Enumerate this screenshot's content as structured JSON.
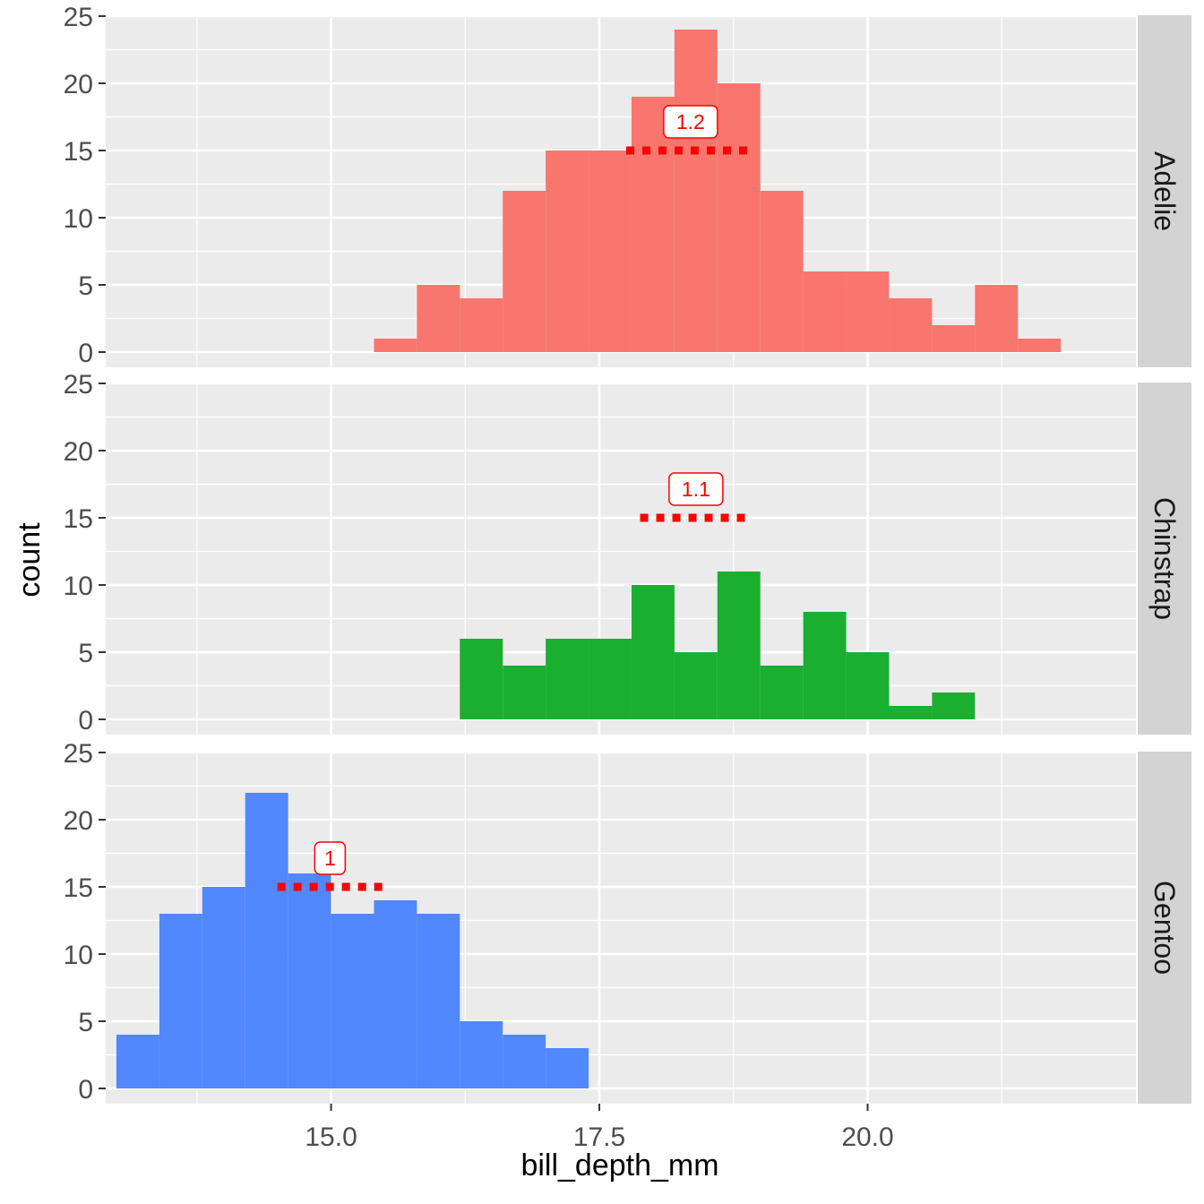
{
  "chart_data": {
    "type": "bar",
    "xlabel": "bill_depth_mm",
    "ylabel": "count",
    "x_ticks": [
      "15.0",
      "17.5",
      "20.0"
    ],
    "x_tick_values": [
      15.0,
      17.5,
      20.0
    ],
    "xlim": [
      12.9,
      22.5
    ],
    "ylim": [
      0,
      25
    ],
    "y_ticks": [
      "0",
      "5",
      "10",
      "15",
      "20",
      "25"
    ],
    "y_tick_values": [
      0,
      5,
      10,
      15,
      20,
      25
    ],
    "grid": true,
    "legend": "none",
    "facet": "rows",
    "bin_width": 0.4,
    "label_color": "#ff0000",
    "panels": [
      {
        "name": "Adelie",
        "color": "#f8766d",
        "bins": [
          {
            "x0": 15.4,
            "x1": 15.8,
            "count": 1
          },
          {
            "x0": 15.8,
            "x1": 16.2,
            "count": 5
          },
          {
            "x0": 16.2,
            "x1": 16.6,
            "count": 4
          },
          {
            "x0": 16.6,
            "x1": 17.0,
            "count": 12
          },
          {
            "x0": 17.0,
            "x1": 17.4,
            "count": 15
          },
          {
            "x0": 17.4,
            "x1": 17.8,
            "count": 15
          },
          {
            "x0": 17.8,
            "x1": 18.2,
            "count": 19
          },
          {
            "x0": 18.2,
            "x1": 18.6,
            "count": 24
          },
          {
            "x0": 18.6,
            "x1": 19.0,
            "count": 20
          },
          {
            "x0": 19.0,
            "x1": 19.4,
            "count": 12
          },
          {
            "x0": 19.4,
            "x1": 19.8,
            "count": 6
          },
          {
            "x0": 19.8,
            "x1": 20.2,
            "count": 6
          },
          {
            "x0": 20.2,
            "x1": 20.6,
            "count": 4
          },
          {
            "x0": 20.6,
            "x1": 21.0,
            "count": 2
          },
          {
            "x0": 21.0,
            "x1": 21.4,
            "count": 5
          },
          {
            "x0": 21.4,
            "x1": 21.8,
            "count": 1
          }
        ],
        "sd_segment": {
          "x0": 17.75,
          "x1": 18.95,
          "y": 15
        },
        "sd_label": "1.2",
        "sd_label_x": 18.35
      },
      {
        "name": "Chinstrap",
        "color": "#1aaf2f",
        "bins": [
          {
            "x0": 16.2,
            "x1": 16.6,
            "count": 6
          },
          {
            "x0": 16.6,
            "x1": 17.0,
            "count": 4
          },
          {
            "x0": 17.0,
            "x1": 17.4,
            "count": 6
          },
          {
            "x0": 17.4,
            "x1": 17.8,
            "count": 6
          },
          {
            "x0": 17.8,
            "x1": 18.2,
            "count": 10
          },
          {
            "x0": 18.2,
            "x1": 18.6,
            "count": 5
          },
          {
            "x0": 18.6,
            "x1": 19.0,
            "count": 11
          },
          {
            "x0": 19.0,
            "x1": 19.4,
            "count": 4
          },
          {
            "x0": 19.4,
            "x1": 19.8,
            "count": 8
          },
          {
            "x0": 19.8,
            "x1": 20.2,
            "count": 5
          },
          {
            "x0": 20.2,
            "x1": 20.6,
            "count": 1
          },
          {
            "x0": 20.6,
            "x1": 21.0,
            "count": 2
          }
        ],
        "sd_segment": {
          "x0": 17.88,
          "x1": 18.92,
          "y": 15
        },
        "sd_label": "1.1",
        "sd_label_x": 18.4
      },
      {
        "name": "Gentoo",
        "color": "#5187ff",
        "bins": [
          {
            "x0": 13.0,
            "x1": 13.4,
            "count": 4
          },
          {
            "x0": 13.4,
            "x1": 13.8,
            "count": 13
          },
          {
            "x0": 13.8,
            "x1": 14.2,
            "count": 15
          },
          {
            "x0": 14.2,
            "x1": 14.6,
            "count": 22
          },
          {
            "x0": 14.6,
            "x1": 15.0,
            "count": 16
          },
          {
            "x0": 15.0,
            "x1": 15.4,
            "count": 13
          },
          {
            "x0": 15.4,
            "x1": 15.8,
            "count": 14
          },
          {
            "x0": 15.8,
            "x1": 16.2,
            "count": 13
          },
          {
            "x0": 16.2,
            "x1": 16.6,
            "count": 5
          },
          {
            "x0": 16.6,
            "x1": 17.0,
            "count": 4
          },
          {
            "x0": 17.0,
            "x1": 17.4,
            "count": 3
          }
        ],
        "sd_segment": {
          "x0": 14.5,
          "x1": 15.48,
          "y": 15
        },
        "sd_label": "1",
        "sd_label_x": 14.99
      }
    ]
  }
}
